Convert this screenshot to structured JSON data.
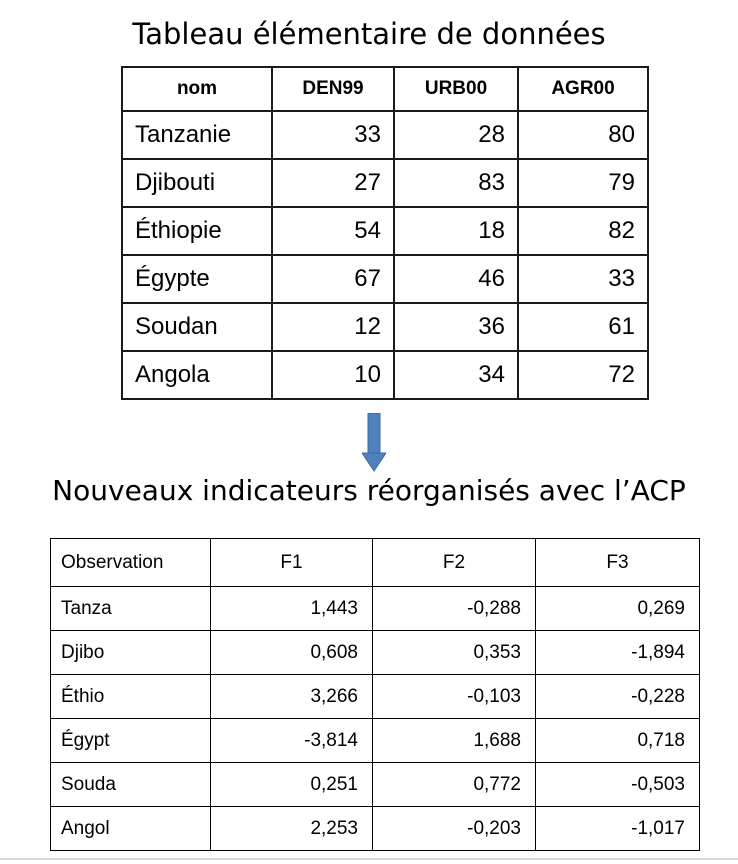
{
  "title_top": "Tableau élémentaire de données",
  "title_bottom": "Nouveaux indicateurs réorganisés avec l’ACP",
  "arrow_icon": "arrow-down-icon",
  "arrow_color": "#4f81bd",
  "table1": {
    "headers": [
      "nom",
      "DEN99",
      "URB00",
      "AGR00"
    ],
    "rows": [
      [
        "Tanzanie",
        "33",
        "28",
        "80"
      ],
      [
        "Djibouti",
        "27",
        "83",
        "79"
      ],
      [
        "Éthiopie",
        "54",
        "18",
        "82"
      ],
      [
        "Égypte",
        "67",
        "46",
        "33"
      ],
      [
        "Soudan",
        "12",
        "36",
        "61"
      ],
      [
        "Angola",
        "10",
        "34",
        "72"
      ]
    ]
  },
  "table2": {
    "headers": [
      "Observation",
      "F1",
      "F2",
      "F3"
    ],
    "rows": [
      [
        "Tanza",
        "1,443",
        "-0,288",
        "0,269"
      ],
      [
        "Djibo",
        "0,608",
        "0,353",
        "-1,894"
      ],
      [
        "Éthio",
        "3,266",
        "-0,103",
        "-0,228"
      ],
      [
        "Égypt",
        "-3,814",
        "1,688",
        "0,718"
      ],
      [
        "Souda",
        "0,251",
        "0,772",
        "-0,503"
      ],
      [
        "Angol",
        "2,253",
        "-0,203",
        "-1,017"
      ]
    ]
  }
}
